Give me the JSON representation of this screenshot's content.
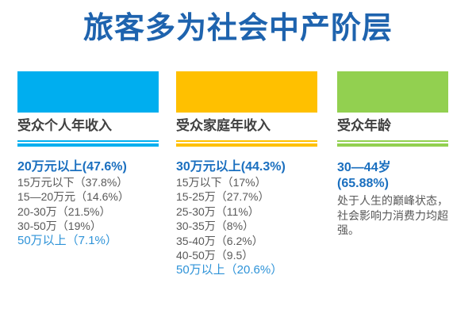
{
  "title": "旅客多为社会中产阶层",
  "colors": {
    "title_blue": "#1E63AE",
    "highlight_blue": "#1A6FBF",
    "light_blue": "#2E93D8",
    "body_gray": "#595959",
    "label_gray": "#404040",
    "column1_accent": "#00AEEF",
    "column2_accent": "#FFC000",
    "column3_accent": "#92D050"
  },
  "columns": [
    {
      "label": "受众个人年收入",
      "accent": "#00AEEF",
      "items": [
        {
          "text": "20万元以上(47.6%)",
          "style": "bold-blue"
        },
        {
          "text": "15万元以下（37.8%）",
          "style": "gray"
        },
        {
          "text": "15—20万元（14.6%）",
          "style": "gray"
        },
        {
          "text": "20-30万（21.5%）",
          "style": "gray"
        },
        {
          "text": "30-50万（19%）",
          "style": "gray"
        },
        {
          "text": "50万以上（7.1%）",
          "style": "light-blue"
        }
      ]
    },
    {
      "label": "受众家庭年收入",
      "accent": "#FFC000",
      "items": [
        {
          "text": "30万元以上(44.3%)",
          "style": "bold-blue"
        },
        {
          "text": "15万以下（17%）",
          "style": "gray"
        },
        {
          "text": "15-25万（27.7%）",
          "style": "gray"
        },
        {
          "text": "25-30万（11%）",
          "style": "gray"
        },
        {
          "text": "30-35万（8%）",
          "style": "gray"
        },
        {
          "text": "35-40万（6.2%）",
          "style": "gray"
        },
        {
          "text": "40-50万（9.5）",
          "style": "gray"
        },
        {
          "text": "50万以上（20.6%）",
          "style": "light-blue"
        }
      ]
    },
    {
      "label": "受众年龄",
      "accent": "#92D050",
      "items": [
        {
          "text": "30—44岁",
          "style": "bold-blue"
        },
        {
          "text": "(65.88%)",
          "style": "bold-blue"
        }
      ],
      "description": "处于人生的巅峰状态，社会影响力消费力均超强。"
    }
  ]
}
